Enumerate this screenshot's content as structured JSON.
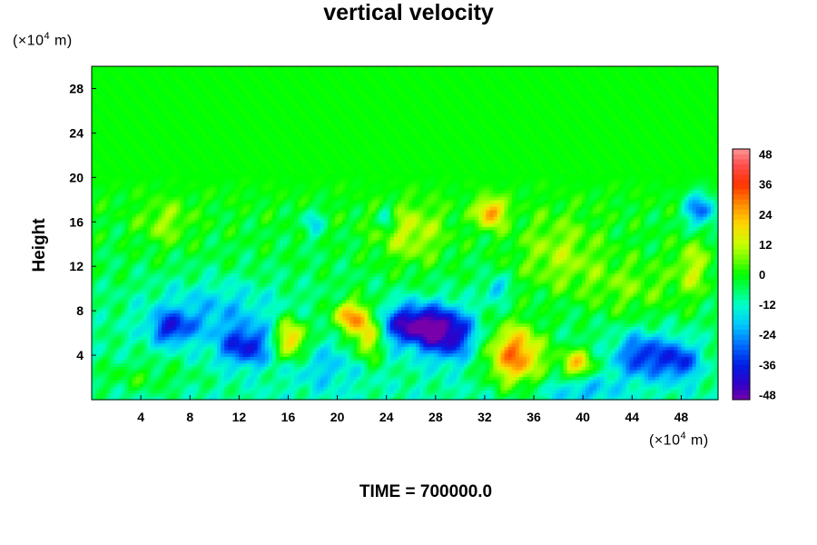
{
  "chart_data": {
    "type": "heatmap",
    "title": "vertical velocity",
    "ylabel": "Height",
    "xlabel": "",
    "y_unit": {
      "prefix": "(×10",
      "exp": "4",
      "suffix": " m)"
    },
    "x_unit": {
      "prefix": "(×10",
      "exp": "4",
      "suffix": " m)"
    },
    "x_ticks": [
      4,
      8,
      12,
      16,
      20,
      24,
      28,
      32,
      36,
      40,
      44,
      48
    ],
    "y_ticks": [
      4,
      8,
      12,
      16,
      20,
      24,
      28
    ],
    "xlim": [
      0,
      51
    ],
    "ylim": [
      0,
      30
    ],
    "colorbar": {
      "ticks": [
        48,
        36,
        24,
        12,
        0,
        -12,
        -24,
        -36,
        -48
      ],
      "range": [
        -50,
        50
      ]
    },
    "features": [
      {
        "x": 6.5,
        "y": 6.5,
        "value": -25,
        "sx": 1.2,
        "sy": 1.0
      },
      {
        "x": 12.5,
        "y": 4.8,
        "value": -28,
        "sx": 1.5,
        "sy": 1.2
      },
      {
        "x": 16.2,
        "y": 5.5,
        "value": 32,
        "sx": 0.9,
        "sy": 1.3
      },
      {
        "x": 21.0,
        "y": 7.5,
        "value": 30,
        "sx": 1.0,
        "sy": 1.0
      },
      {
        "x": 22.5,
        "y": 5.8,
        "value": 28,
        "sx": 0.8,
        "sy": 1.5
      },
      {
        "x": 26.0,
        "y": 6.8,
        "value": -38,
        "sx": 1.8,
        "sy": 1.3
      },
      {
        "x": 29.0,
        "y": 6.0,
        "value": -36,
        "sx": 1.6,
        "sy": 1.6
      },
      {
        "x": 34.5,
        "y": 4.0,
        "value": 38,
        "sx": 1.6,
        "sy": 1.9
      },
      {
        "x": 39.5,
        "y": 3.2,
        "value": 28,
        "sx": 1.0,
        "sy": 1.0
      },
      {
        "x": 45.0,
        "y": 4.0,
        "value": -28,
        "sx": 1.6,
        "sy": 1.4
      },
      {
        "x": 48.0,
        "y": 3.5,
        "value": -24,
        "sx": 1.0,
        "sy": 1.2
      },
      {
        "x": 49.5,
        "y": 17.5,
        "value": -30,
        "sx": 0.9,
        "sy": 1.4
      },
      {
        "x": 32.5,
        "y": 17.0,
        "value": 30,
        "sx": 0.8,
        "sy": 1.0
      },
      {
        "x": 33.0,
        "y": 10.0,
        "value": -18,
        "sx": 0.6,
        "sy": 0.8
      },
      {
        "x": 10.0,
        "y": 8.0,
        "value": -14,
        "sx": 4.0,
        "sy": 2.0
      },
      {
        "x": 26.0,
        "y": 15.0,
        "value": 14,
        "sx": 2.0,
        "sy": 2.0
      },
      {
        "x": 38.0,
        "y": 13.0,
        "value": 12,
        "sx": 2.5,
        "sy": 2.5
      },
      {
        "x": 24.0,
        "y": 16.5,
        "value": -16,
        "sx": 0.5,
        "sy": 0.8
      },
      {
        "x": 18.0,
        "y": 16.0,
        "value": -14,
        "sx": 0.6,
        "sy": 1.0
      },
      {
        "x": 6.0,
        "y": 16.0,
        "value": 10,
        "sx": 1.5,
        "sy": 1.5
      },
      {
        "x": 44.0,
        "y": 10.0,
        "value": 10,
        "sx": 3.0,
        "sy": 2.0
      },
      {
        "x": 40.0,
        "y": 1.0,
        "value": -12,
        "sx": 2.0,
        "sy": 1.0
      },
      {
        "x": 4.0,
        "y": 2.0,
        "value": 8,
        "sx": 3.0,
        "sy": 1.0
      },
      {
        "x": 19.0,
        "y": 3.0,
        "value": -10,
        "sx": 2.0,
        "sy": 1.5
      },
      {
        "x": 49.0,
        "y": 12.0,
        "value": 14,
        "sx": 1.0,
        "sy": 2.0
      }
    ]
  },
  "footer": {
    "time_label": "TIME = 700000.0"
  }
}
